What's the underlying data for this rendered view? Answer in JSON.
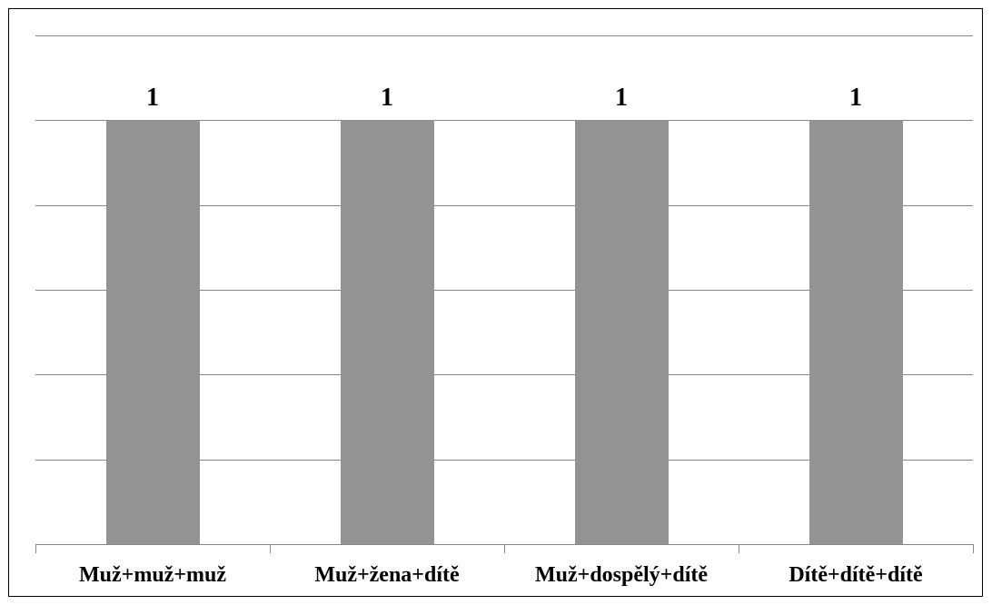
{
  "chart_data": {
    "type": "bar",
    "categories": [
      "Muž+muž+muž",
      "Muž+žena+dítě",
      "Muž+dospělý+dítě",
      "Dítě+dítě+dítě"
    ],
    "values": [
      1,
      1,
      1,
      1
    ],
    "data_labels": [
      "1",
      "1",
      "1",
      "1"
    ],
    "title": "",
    "xlabel": "",
    "ylabel": "",
    "ylim": [
      0,
      1.2
    ],
    "y_gridline_step": 0.2,
    "y_tick_labels_shown": false,
    "grid": true,
    "legend": "none",
    "colors": {
      "bar": "#939393",
      "gridline": "#868686",
      "frame": "#000000",
      "text": "#000000"
    }
  }
}
